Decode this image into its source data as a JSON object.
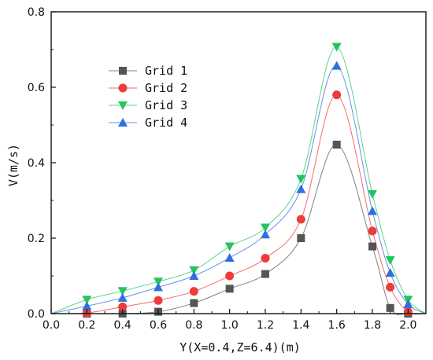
{
  "chart_data": {
    "type": "line",
    "title": "",
    "xlabel": "Y(X=0.4,Z=6.4)(m)",
    "ylabel": "V(m/s)",
    "xlim": [
      0.0,
      2.1
    ],
    "ylim": [
      0.0,
      0.8
    ],
    "xticks": [
      "0.0",
      "0.2",
      "0.4",
      "0.6",
      "0.8",
      "1.0",
      "1.2",
      "1.4",
      "1.6",
      "1.8",
      "2.0"
    ],
    "yticks": [
      "0.0",
      "0.2",
      "0.4",
      "0.6",
      "0.8"
    ],
    "grid": false,
    "legend_position": "upper-left",
    "x": [
      0.2,
      0.4,
      0.6,
      0.8,
      1.0,
      1.2,
      1.4,
      1.6,
      1.8,
      1.9,
      2.0
    ],
    "series": [
      {
        "name": "Grid 1",
        "color": "#555555",
        "marker": "square",
        "values": [
          0.0,
          0.0,
          0.005,
          0.028,
          0.066,
          0.105,
          0.2,
          0.448,
          0.178,
          0.015,
          0.0
        ]
      },
      {
        "name": "Grid 2",
        "color": "#ee3b3b",
        "marker": "circle",
        "values": [
          0.002,
          0.018,
          0.035,
          0.059,
          0.1,
          0.147,
          0.25,
          0.58,
          0.219,
          0.07,
          0.005
        ]
      },
      {
        "name": "Grid 3",
        "color": "#22c55e",
        "marker": "triangle-down",
        "values": [
          0.037,
          0.06,
          0.085,
          0.115,
          0.178,
          0.228,
          0.357,
          0.707,
          0.317,
          0.142,
          0.037
        ]
      },
      {
        "name": "Grid 4",
        "color": "#2f6fe0",
        "marker": "triangle-up",
        "values": [
          0.02,
          0.042,
          0.07,
          0.1,
          0.148,
          0.21,
          0.33,
          0.657,
          0.272,
          0.108,
          0.025
        ]
      }
    ]
  }
}
